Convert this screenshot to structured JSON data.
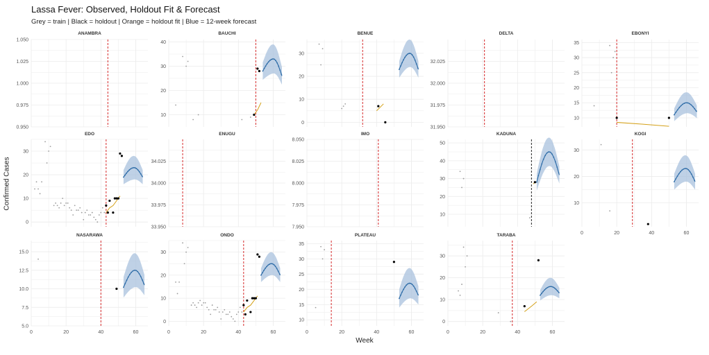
{
  "header": {
    "title": "Lassa Fever: Observed, Holdout Fit & Forecast",
    "subtitle": "Grey = train | Black = holdout | Orange = holdout fit | Blue = 12-week forecast"
  },
  "colors": {
    "train": "#9a9a9a",
    "holdout": "#000000",
    "fit": "#d4a017",
    "forecast_line": "#2f6da8",
    "forecast_band": "#a9c2dd",
    "cutoff": "#d62728",
    "grid": "#ebebeb"
  },
  "chart_data": {
    "type": "scatter",
    "xlabel": "Week",
    "ylabel": "Confirmed Cases",
    "grid": true,
    "legend": "none",
    "panels": [
      {
        "name": "ANAMBRA",
        "xlim": [
          0,
          67
        ],
        "ylim": [
          0.95,
          1.05
        ],
        "yticks": [
          0.95,
          0.975,
          1.0,
          1.025,
          1.05
        ],
        "ytick_labels": [
          "0.950",
          "0.975",
          "1.000",
          "1.025",
          "1.050"
        ],
        "cutoff": 44,
        "train": [],
        "holdout": [],
        "fit": [],
        "forecast": null
      },
      {
        "name": "BAUCHI",
        "xlim": [
          0,
          67
        ],
        "ylim": [
          5,
          41
        ],
        "yticks": [
          10,
          20,
          30,
          40
        ],
        "ytick_labels": [
          "10",
          "20",
          "30",
          "40"
        ],
        "cutoff": 50,
        "train": [
          [
            4,
            14
          ],
          [
            8,
            34
          ],
          [
            10,
            30
          ],
          [
            11,
            32
          ],
          [
            14,
            8
          ],
          [
            17,
            10
          ],
          [
            42,
            8
          ],
          [
            47,
            9
          ]
        ],
        "holdout": [
          [
            49,
            10
          ],
          [
            51,
            29
          ],
          [
            52,
            28
          ]
        ],
        "fit": [
          [
            49,
            10
          ],
          [
            51,
            12
          ],
          [
            53,
            15
          ]
        ],
        "forecast": {
          "x0": 54,
          "x1": 65,
          "peak": 33,
          "start": 28,
          "end": 26,
          "band": 6
        }
      },
      {
        "name": "BENUE",
        "xlim": [
          0,
          67
        ],
        "ylim": [
          -2,
          36
        ],
        "yticks": [
          0,
          10,
          20,
          30
        ],
        "ytick_labels": [
          "0",
          "10",
          "20",
          "30"
        ],
        "cutoff": 32,
        "train": [
          [
            7,
            34
          ],
          [
            8,
            25
          ],
          [
            9,
            32
          ],
          [
            20,
            6
          ],
          [
            21,
            7
          ],
          [
            22,
            8
          ]
        ],
        "holdout": [
          [
            41,
            7
          ],
          [
            45,
            0
          ]
        ],
        "fit": [
          [
            40,
            5
          ],
          [
            42,
            6.5
          ],
          [
            44,
            8
          ]
        ],
        "forecast": {
          "x0": 53,
          "x1": 64,
          "peak": 30,
          "start": 23,
          "end": 23,
          "band": 6
        }
      },
      {
        "name": "DELTA",
        "xlim": [
          0,
          67
        ],
        "ylim": [
          31.95,
          32.05
        ],
        "yticks": [
          31.95,
          31.975,
          32.0,
          32.025
        ],
        "ytick_labels": [
          "31.950",
          "31.975",
          "32.000",
          "32.025"
        ],
        "cutoff": 21,
        "train": [],
        "holdout": [],
        "fit": [],
        "forecast": null
      },
      {
        "name": "EBONYI",
        "xlim": [
          0,
          67
        ],
        "ylim": [
          7,
          36
        ],
        "yticks": [
          10,
          15,
          20,
          25,
          30,
          35
        ],
        "ytick_labels": [
          "10",
          "15",
          "20",
          "25",
          "30",
          "35"
        ],
        "cutoff": 20,
        "train": [
          [
            7,
            14
          ],
          [
            16,
            34
          ],
          [
            17,
            25
          ],
          [
            18,
            30
          ],
          [
            19,
            32
          ]
        ],
        "holdout": [
          [
            20,
            10
          ],
          [
            50,
            10
          ]
        ],
        "fit": [
          [
            20,
            8.5
          ],
          [
            35,
            7.9
          ],
          [
            50,
            7.2
          ]
        ],
        "forecast": {
          "x0": 53,
          "x1": 66,
          "peak": 15,
          "start": 11,
          "end": 12,
          "band": 3.5
        }
      },
      {
        "name": "EDO",
        "xlim": [
          0,
          67
        ],
        "ylim": [
          -2,
          35
        ],
        "yticks": [
          0,
          10,
          20,
          30
        ],
        "ytick_labels": [
          "0",
          "10",
          "20",
          "30"
        ],
        "cutoff": 43,
        "train": [
          [
            2,
            14
          ],
          [
            3,
            17
          ],
          [
            4,
            14
          ],
          [
            5,
            12
          ],
          [
            6,
            17
          ],
          [
            8,
            34
          ],
          [
            9,
            25
          ],
          [
            10,
            30
          ],
          [
            11,
            32
          ],
          [
            13,
            7
          ],
          [
            14,
            8
          ],
          [
            15,
            7
          ],
          [
            16,
            6
          ],
          [
            17,
            8
          ],
          [
            18,
            10
          ],
          [
            19,
            7
          ],
          [
            20,
            8
          ],
          [
            21,
            8
          ],
          [
            22,
            6
          ],
          [
            23,
            5
          ],
          [
            24,
            3
          ],
          [
            25,
            7
          ],
          [
            26,
            5
          ],
          [
            27,
            5
          ],
          [
            28,
            6
          ],
          [
            29,
            4
          ],
          [
            30,
            1
          ],
          [
            31,
            4
          ],
          [
            32,
            5
          ],
          [
            33,
            3
          ],
          [
            34,
            3
          ],
          [
            35,
            4
          ],
          [
            36,
            2
          ],
          [
            37,
            1
          ],
          [
            38,
            0
          ],
          [
            39,
            3
          ],
          [
            40,
            4
          ],
          [
            41,
            6
          ],
          [
            42,
            4
          ]
        ],
        "holdout": [
          [
            43,
            7
          ],
          [
            44,
            4
          ],
          [
            45,
            9
          ],
          [
            47,
            4
          ],
          [
            48,
            10
          ],
          [
            49,
            10
          ],
          [
            50,
            10
          ],
          [
            51,
            29
          ],
          [
            52,
            28
          ]
        ],
        "fit": [
          [
            43,
            4
          ],
          [
            45,
            6
          ],
          [
            47,
            7
          ],
          [
            49,
            9
          ],
          [
            51,
            11
          ]
        ],
        "forecast": {
          "x0": 53,
          "x1": 64,
          "peak": 23,
          "start": 19,
          "end": 19,
          "band": 5
        }
      },
      {
        "name": "ENUGU",
        "xlim": [
          0,
          67
        ],
        "ylim": [
          33.95,
          34.05
        ],
        "yticks": [
          33.95,
          33.975,
          34.0,
          34.025
        ],
        "ytick_labels": [
          "33.950",
          "33.975",
          "34.000",
          "34.025"
        ],
        "cutoff": 8,
        "train": [],
        "holdout": [],
        "fit": [],
        "forecast": null
      },
      {
        "name": "IMO",
        "xlim": [
          0,
          67
        ],
        "ylim": [
          7.95,
          8.05
        ],
        "yticks": [
          7.95,
          7.975,
          8.0,
          8.025,
          8.05
        ],
        "ytick_labels": [
          "7.950",
          "7.975",
          "8.000",
          "8.025",
          "8.050"
        ],
        "cutoff": 41,
        "train": [],
        "holdout": [],
        "fit": [],
        "forecast": null
      },
      {
        "name": "KADUNA",
        "xlim": [
          0,
          67
        ],
        "ylim": [
          3,
          52
        ],
        "yticks": [
          10,
          20,
          30,
          40,
          50
        ],
        "ytick_labels": [
          "10",
          "20",
          "30",
          "40",
          "50"
        ],
        "cutoff": 48,
        "train": [
          [
            7,
            34
          ],
          [
            8,
            25
          ],
          [
            9,
            30
          ],
          [
            47,
            8
          ]
        ],
        "holdout": [
          [
            50,
            28
          ]
        ],
        "fit": [
          [
            49,
            27
          ],
          [
            50,
            28
          ]
        ],
        "forecast": {
          "x0": 51,
          "x1": 64,
          "peak": 45,
          "start": 28,
          "end": 32,
          "band": 8
        }
      },
      {
        "name": "KOGI",
        "xlim": [
          0,
          67
        ],
        "ylim": [
          1,
          34
        ],
        "yticks": [
          10,
          20,
          30
        ],
        "ytick_labels": [
          "10",
          "20",
          "30"
        ],
        "cutoff": 29,
        "train": [
          [
            11,
            32
          ],
          [
            16,
            7
          ]
        ],
        "holdout": [
          [
            38,
            2
          ]
        ],
        "fit": [],
        "forecast": {
          "x0": 53,
          "x1": 65,
          "peak": 23,
          "start": 18,
          "end": 18,
          "band": 5
        }
      },
      {
        "name": "NASARAWA",
        "xlim": [
          0,
          67
        ],
        "ylim": [
          5,
          16.5
        ],
        "yticks": [
          5.0,
          7.5,
          10.0,
          12.5,
          15.0
        ],
        "ytick_labels": [
          "5.0",
          "7.5",
          "10.0",
          "12.5",
          "15.0"
        ],
        "cutoff": 40,
        "train": [
          [
            4,
            14
          ]
        ],
        "holdout": [
          [
            49,
            10
          ]
        ],
        "fit": [],
        "forecast": {
          "x0": 53,
          "x1": 65,
          "peak": 12.5,
          "start": 10.2,
          "end": 10.5,
          "band": 2.3
        }
      },
      {
        "name": "ONDO",
        "xlim": [
          0,
          67
        ],
        "ylim": [
          -2,
          35
        ],
        "yticks": [
          0,
          10,
          20,
          30
        ],
        "ytick_labels": [
          "0",
          "10",
          "20",
          "30"
        ],
        "cutoff": 43,
        "train": [
          [
            4,
            17
          ],
          [
            5,
            12
          ],
          [
            6,
            17
          ],
          [
            8,
            34
          ],
          [
            9,
            25
          ],
          [
            10,
            30
          ],
          [
            11,
            32
          ],
          [
            13,
            7
          ],
          [
            14,
            8
          ],
          [
            15,
            7
          ],
          [
            16,
            6
          ],
          [
            17,
            8
          ],
          [
            18,
            9
          ],
          [
            19,
            7
          ],
          [
            20,
            8
          ],
          [
            21,
            8
          ],
          [
            22,
            6
          ],
          [
            23,
            5
          ],
          [
            24,
            3
          ],
          [
            25,
            7
          ],
          [
            26,
            5
          ],
          [
            27,
            5
          ],
          [
            28,
            6
          ],
          [
            29,
            4
          ],
          [
            30,
            1
          ],
          [
            31,
            4
          ],
          [
            32,
            5
          ],
          [
            33,
            3
          ],
          [
            34,
            3
          ],
          [
            35,
            4
          ],
          [
            36,
            2
          ],
          [
            37,
            1
          ],
          [
            38,
            0
          ],
          [
            39,
            3
          ],
          [
            40,
            4
          ],
          [
            41,
            6
          ],
          [
            42,
            4
          ]
        ],
        "holdout": [
          [
            43,
            7
          ],
          [
            44,
            3
          ],
          [
            45,
            9
          ],
          [
            47,
            4
          ],
          [
            48,
            10
          ],
          [
            49,
            10
          ],
          [
            50,
            10
          ],
          [
            51,
            29
          ],
          [
            52,
            28
          ]
        ],
        "fit": [
          [
            43,
            4
          ],
          [
            45,
            6
          ],
          [
            47,
            7
          ],
          [
            49,
            9
          ],
          [
            51,
            11
          ]
        ],
        "forecast": {
          "x0": 53,
          "x1": 64,
          "peak": 25,
          "start": 20,
          "end": 20,
          "band": 5
        }
      },
      {
        "name": "PLATEAU",
        "xlim": [
          0,
          67
        ],
        "ylim": [
          8,
          36
        ],
        "yticks": [
          10,
          15,
          20,
          25,
          30,
          35
        ],
        "ytick_labels": [
          "10",
          "15",
          "20",
          "25",
          "30",
          "35"
        ],
        "cutoff": 14,
        "train": [
          [
            5,
            14
          ],
          [
            8,
            34
          ],
          [
            9,
            30
          ],
          [
            10,
            33
          ]
        ],
        "holdout": [
          [
            50,
            29
          ]
        ],
        "fit": [],
        "forecast": {
          "x0": 53,
          "x1": 64,
          "peak": 22,
          "start": 17,
          "end": 18,
          "band": 5
        }
      },
      {
        "name": "TARABA",
        "xlim": [
          0,
          67
        ],
        "ylim": [
          -2,
          37
        ],
        "yticks": [
          0,
          10,
          20,
          30
        ],
        "ytick_labels": [
          "0",
          "10",
          "20",
          "30"
        ],
        "cutoff": 37,
        "train": [
          [
            6,
            14
          ],
          [
            7,
            12
          ],
          [
            8,
            17
          ],
          [
            9,
            34
          ],
          [
            10,
            25
          ],
          [
            11,
            30
          ],
          [
            29,
            4
          ],
          [
            36,
            0
          ]
        ],
        "holdout": [
          [
            44,
            7
          ],
          [
            52,
            28
          ]
        ],
        "fit": [
          [
            44,
            4.5
          ],
          [
            48,
            7
          ],
          [
            51,
            9
          ]
        ],
        "forecast": {
          "x0": 53,
          "x1": 64,
          "peak": 16,
          "start": 12,
          "end": 13,
          "band": 4
        }
      }
    ],
    "xticks": [
      0,
      20,
      40,
      60
    ],
    "xtick_labels": [
      "0",
      "20",
      "40",
      "60"
    ]
  }
}
